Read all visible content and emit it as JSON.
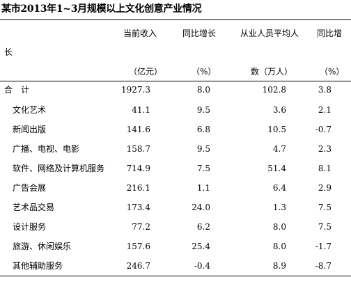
{
  "title": "某市2013年1~3月规模以上文化创意产业情况",
  "header": {
    "revenue_line1": "当前收入",
    "revenue_line2": "（亿元）",
    "revenue_growth_line1": "同比增长",
    "revenue_growth_line2": "（%）",
    "employees_line1": "从业人员平均人",
    "employees_line2": "数（万人）",
    "employees_growth_line1": "同比增",
    "employees_growth_wrap": "长",
    "employees_growth_line2": "（%）"
  },
  "rows": [
    {
      "name": "合　计",
      "revenue": "1927.3",
      "revenue_growth": "8.0",
      "employees": "102.8",
      "employees_growth": "3.8"
    },
    {
      "name": "　文化艺术",
      "revenue": "41.1",
      "revenue_growth": "9.5",
      "employees": "3.6",
      "employees_growth": "2.1"
    },
    {
      "name": "　新闻出版",
      "revenue": "141.6",
      "revenue_growth": "6.8",
      "employees": "10.5",
      "employees_growth": "-0.7"
    },
    {
      "name": "　广播、电视、电影",
      "revenue": "158.7",
      "revenue_growth": "9.5",
      "employees": "4.7",
      "employees_growth": "2.3"
    },
    {
      "name": "　软件、网络及计算机服务",
      "revenue": "714.9",
      "revenue_growth": "7.5",
      "employees": "51.4",
      "employees_growth": "8.1"
    },
    {
      "name": "　广告会展",
      "revenue": "216.1",
      "revenue_growth": "1.1",
      "employees": "6.4",
      "employees_growth": "2.9"
    },
    {
      "name": "　艺术品交易",
      "revenue": "173.4",
      "revenue_growth": "24.0",
      "employees": "1.3",
      "employees_growth": "7.5"
    },
    {
      "name": "　设计服务",
      "revenue": "77.2",
      "revenue_growth": "6.2",
      "employees": "8.0",
      "employees_growth": "7.5"
    },
    {
      "name": "　旅游、休闲娱乐",
      "revenue": "157.6",
      "revenue_growth": "25.4",
      "employees": "8.0",
      "employees_growth": "-1.7"
    },
    {
      "name": "　其他辅助服务",
      "revenue": "246.7",
      "revenue_growth": "-0.4",
      "employees": "8.9",
      "employees_growth": "-8.7"
    }
  ]
}
